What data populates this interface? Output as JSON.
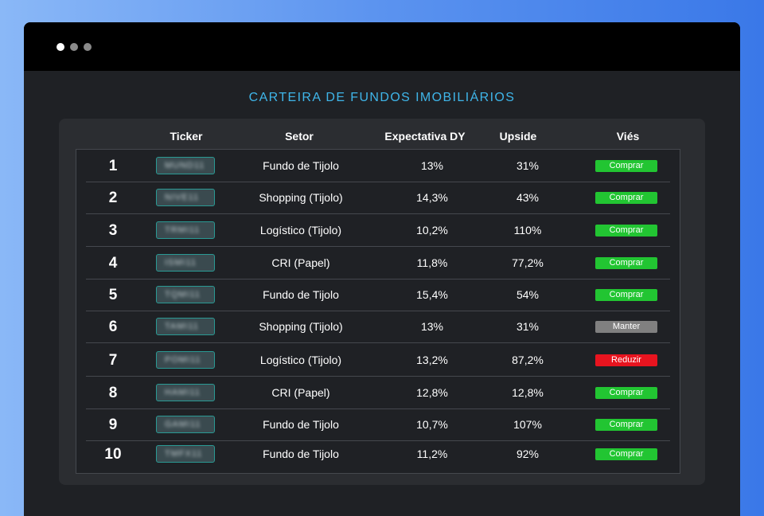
{
  "window": {
    "title_dots": [
      "close-dot",
      "minimize-dot",
      "maximize-dot"
    ]
  },
  "page_title": "CARTEIRA DE FUNDOS IMOBILIÁRIOS",
  "colors": {
    "comprar": "#22c532",
    "manter": "#808080",
    "reduzir": "#e8141f",
    "title": "#3fb6ea"
  },
  "table": {
    "headers": {
      "ticker": "Ticker",
      "setor": "Setor",
      "dy": "Expectativa DY",
      "upside": "Upside",
      "vies": "Viés"
    },
    "rows": [
      {
        "num": "1",
        "ticker": "MUND11",
        "setor": "Fundo de Tijolo",
        "dy": "13%",
        "upside": "31%",
        "vies": "Comprar",
        "vies_type": "comprar"
      },
      {
        "num": "2",
        "ticker": "NIVE11",
        "setor": "Shopping (Tijolo)",
        "dy": "14,3%",
        "upside": "43%",
        "vies": "Comprar",
        "vies_type": "comprar"
      },
      {
        "num": "3",
        "ticker": "TRMI11",
        "setor": "Logístico (Tijolo)",
        "dy": "10,2%",
        "upside": "110%",
        "vies": "Comprar",
        "vies_type": "comprar"
      },
      {
        "num": "4",
        "ticker": "ISMI11",
        "setor": "CRI (Papel)",
        "dy": "11,8%",
        "upside": "77,2%",
        "vies": "Comprar",
        "vies_type": "comprar"
      },
      {
        "num": "5",
        "ticker": "TQMI11",
        "setor": "Fundo de Tijolo",
        "dy": "15,4%",
        "upside": "54%",
        "vies": "Comprar",
        "vies_type": "comprar"
      },
      {
        "num": "6",
        "ticker": "TAMI11",
        "setor": "Shopping (Tijolo)",
        "dy": "13%",
        "upside": "31%",
        "vies": "Manter",
        "vies_type": "manter"
      },
      {
        "num": "7",
        "ticker": "POMI11",
        "setor": "Logístico (Tijolo)",
        "dy": "13,2%",
        "upside": "87,2%",
        "vies": "Reduzir",
        "vies_type": "reduzir"
      },
      {
        "num": "8",
        "ticker": "HAMI11",
        "setor": "CRI (Papel)",
        "dy": "12,8%",
        "upside": "12,8%",
        "vies": "Comprar",
        "vies_type": "comprar"
      },
      {
        "num": "9",
        "ticker": "GAMI11",
        "setor": "Fundo de Tijolo",
        "dy": "10,7%",
        "upside": "107%",
        "vies": "Comprar",
        "vies_type": "comprar"
      },
      {
        "num": "10",
        "ticker": "TMFX11",
        "setor": "Fundo de Tijolo",
        "dy": "11,2%",
        "upside": "92%",
        "vies": "Comprar",
        "vies_type": "comprar"
      }
    ]
  }
}
